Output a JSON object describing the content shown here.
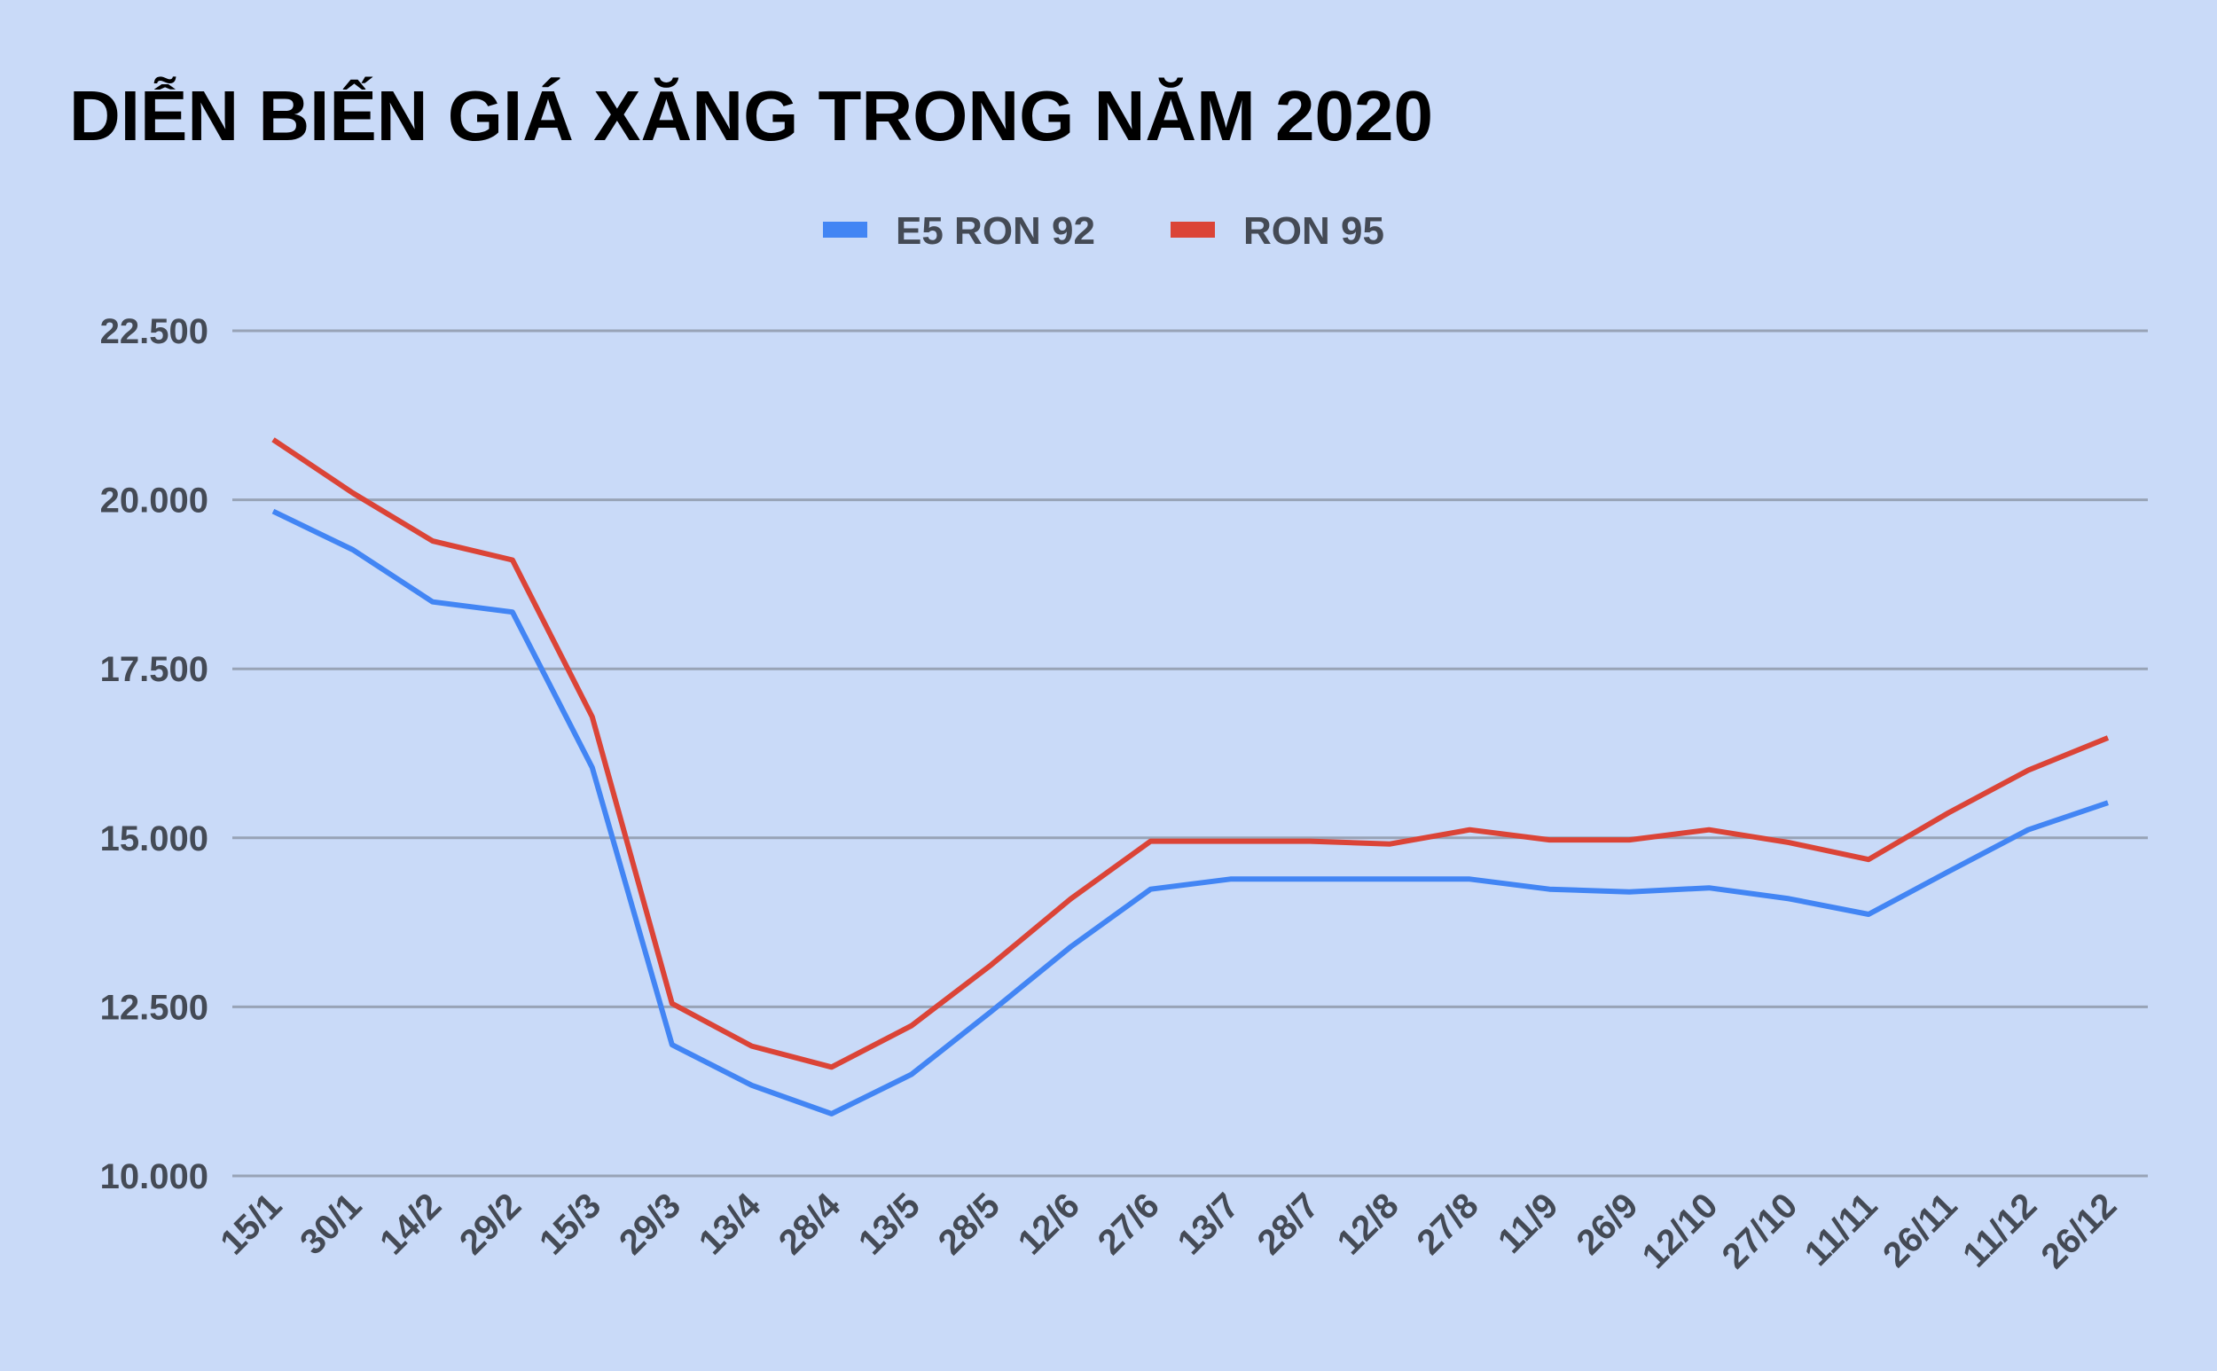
{
  "chart_data": {
    "type": "line",
    "title": "DIỄN BIẾN GIÁ XĂNG TRONG NĂM 2020",
    "xlabel": "",
    "ylabel": "",
    "ylim": [
      10000,
      22500
    ],
    "yticks": [
      10000,
      12500,
      15000,
      17500,
      20000,
      22500
    ],
    "ytick_labels": [
      "10.000",
      "12.500",
      "15.000",
      "17.500",
      "20.000",
      "22.500"
    ],
    "grid": true,
    "legend_position": "top-center",
    "categories": [
      "15/1",
      "30/1",
      "14/2",
      "29/2",
      "15/3",
      "29/3",
      "13/4",
      "28/4",
      "13/5",
      "28/5",
      "12/6",
      "27/6",
      "13/7",
      "28/7",
      "12/8",
      "27/8",
      "11/9",
      "26/9",
      "12/10",
      "27/10",
      "11/11",
      "26/11",
      "11/12",
      "26/12"
    ],
    "series": [
      {
        "name": "E5 RON 92",
        "color": "#4285f4",
        "values": [
          19830,
          19260,
          18490,
          18340,
          16040,
          11940,
          11340,
          10920,
          11500,
          12430,
          13390,
          14240,
          14390,
          14390,
          14390,
          14390,
          14240,
          14200,
          14260,
          14100,
          13870,
          14500,
          15120,
          15520
        ]
      },
      {
        "name": "RON 95",
        "color": "#db4437",
        "values": [
          20890,
          20100,
          19390,
          19110,
          16790,
          12550,
          11920,
          11610,
          12220,
          13120,
          14100,
          14950,
          14950,
          14950,
          14910,
          15120,
          14970,
          14970,
          15120,
          14930,
          14680,
          15370,
          16000,
          16480
        ]
      }
    ]
  }
}
